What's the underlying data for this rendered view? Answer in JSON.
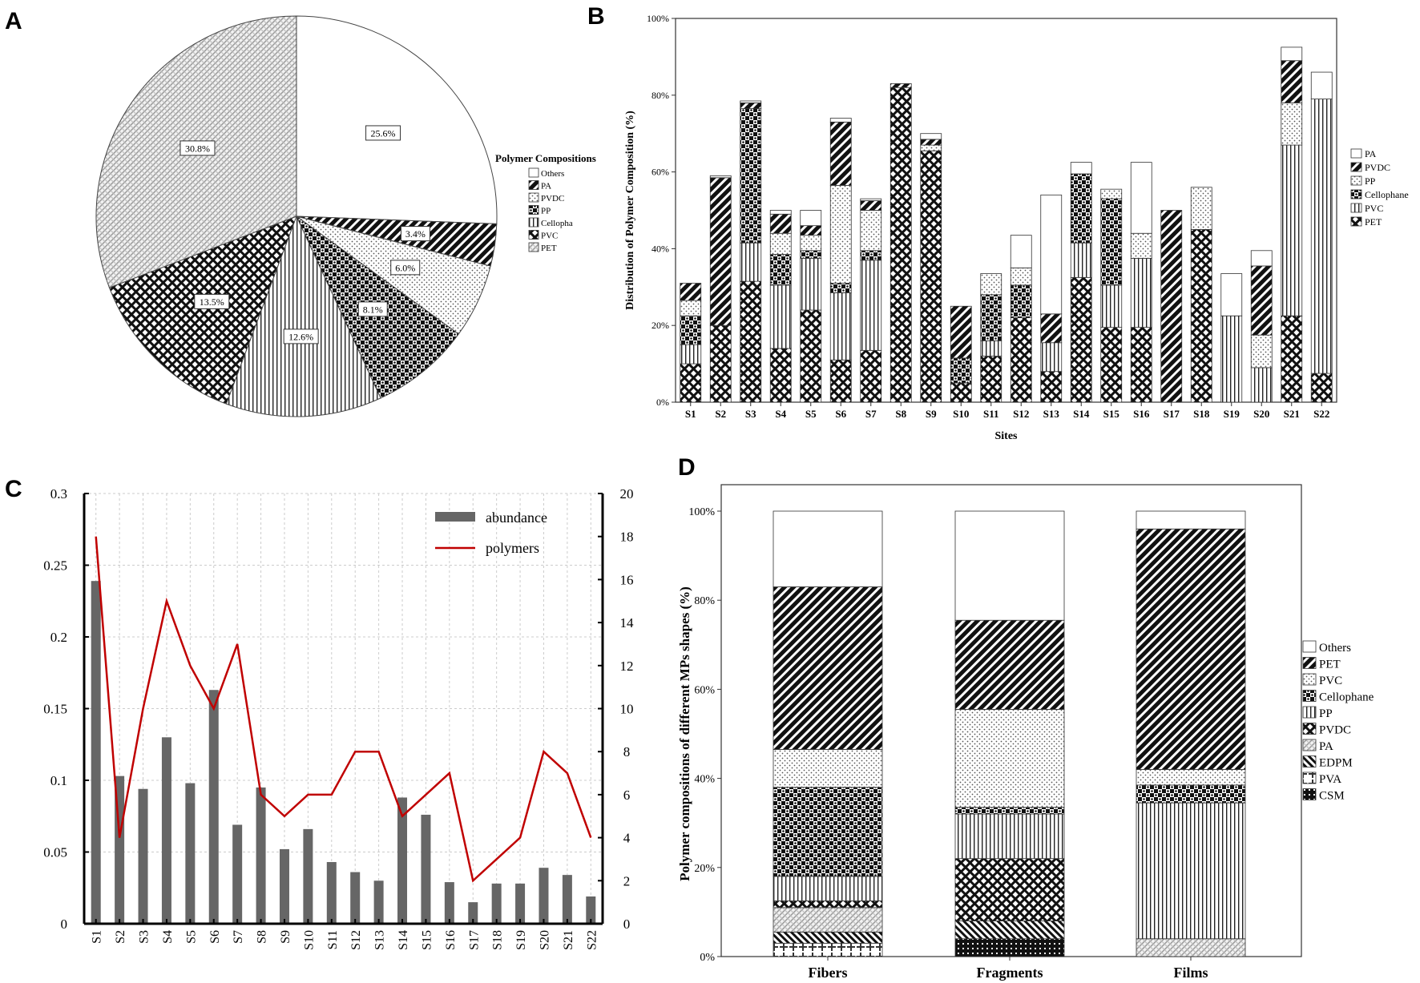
{
  "panels": [
    {
      "letter": "A"
    },
    {
      "letter": "B"
    },
    {
      "letter": "C"
    },
    {
      "letter": "D"
    }
  ],
  "chart_data": [
    {
      "panel": "A",
      "type": "pie",
      "legend_title": "Polymer Compositions",
      "legend": [
        "Others",
        "PA",
        "PVDC",
        "PP",
        "Cellopha",
        "PVC",
        "PET"
      ],
      "slices": [
        {
          "label": "25.6%",
          "value": 25.6,
          "pattern": "white",
          "color": "#ffffff"
        },
        {
          "label": "3.4%",
          "value": 3.4,
          "pattern": "diag-dark",
          "color": "#222222"
        },
        {
          "label": "6.0%",
          "value": 6.0,
          "pattern": "dots-light",
          "color": "#f2f2f2"
        },
        {
          "label": "8.1%",
          "value": 8.1,
          "pattern": "checker",
          "color": "#555555"
        },
        {
          "label": "12.6%",
          "value": 12.6,
          "pattern": "vlines",
          "color": "#bbbbbb"
        },
        {
          "label": "13.5%",
          "value": 13.5,
          "pattern": "crosshatch",
          "color": "#333333"
        },
        {
          "label": "30.8%",
          "value": 30.8,
          "pattern": "light-hatch",
          "color": "#dddddd"
        }
      ],
      "legend_placement": "right"
    },
    {
      "panel": "B",
      "type": "bar",
      "stacked": true,
      "xlabel": "Sites",
      "ylabel": "Distribution of Polymer Composition (%)",
      "yticks": [
        "0%",
        "20%",
        "40%",
        "60%",
        "80%",
        "100%"
      ],
      "ylim": [
        0,
        100
      ],
      "categories": [
        "S1",
        "S2",
        "S3",
        "S4",
        "S5",
        "S6",
        "S7",
        "S8",
        "S9",
        "S10",
        "S11",
        "S12",
        "S13",
        "S14",
        "S15",
        "S16",
        "S17",
        "S18",
        "S19",
        "S20",
        "S21",
        "S22"
      ],
      "legend": [
        "PA",
        "PVDC",
        "PP",
        "Cellophane",
        "PVC",
        "PET"
      ],
      "legend_placement": "right",
      "series": [
        {
          "name": "PET",
          "pattern": "crosshatch",
          "values": [
            10,
            20,
            31.5,
            14,
            24,
            11,
            13.5,
            82,
            65.5,
            5,
            12,
            22,
            8,
            32.5,
            19.5,
            19.5,
            0,
            45,
            0,
            0,
            22.5,
            7.5
          ]
        },
        {
          "name": "PVC",
          "pattern": "vlines",
          "values": [
            5,
            0,
            10,
            16.5,
            13.5,
            17.5,
            23.5,
            0,
            0,
            0,
            4,
            0,
            7.5,
            9,
            11,
            18,
            0,
            0,
            22.5,
            9,
            44.5,
            71.5
          ]
        },
        {
          "name": "Cellophane",
          "pattern": "checker",
          "values": [
            7.5,
            0,
            35,
            8,
            2,
            2.5,
            2.5,
            0,
            0,
            6.5,
            12,
            8.5,
            0,
            18,
            22.5,
            0,
            0,
            0,
            0,
            0,
            0,
            0
          ]
        },
        {
          "name": "PP",
          "pattern": "dots-light",
          "values": [
            4,
            0,
            0,
            5.5,
            4,
            25.5,
            10.5,
            0,
            1.5,
            0,
            5.5,
            4.5,
            0,
            0,
            2.5,
            6.5,
            0,
            11,
            0,
            8.5,
            11,
            0
          ]
        },
        {
          "name": "PVDC",
          "pattern": "diag-dark",
          "values": [
            4.5,
            38.5,
            1.5,
            5,
            2.5,
            16.5,
            2.5,
            1,
            1.5,
            13.5,
            0,
            0,
            7.5,
            0,
            0,
            0,
            50,
            0,
            0,
            18,
            11,
            0
          ]
        },
        {
          "name": "PA",
          "pattern": "white",
          "values": [
            0,
            0.5,
            0.5,
            1,
            4,
            1,
            0.5,
            0,
            1.5,
            0,
            0,
            8.5,
            31,
            3,
            0,
            18.5,
            0,
            0,
            11,
            4,
            3.5,
            7
          ]
        }
      ]
    },
    {
      "panel": "C",
      "type": "bar",
      "dual_axis": true,
      "categories": [
        "S1",
        "S2",
        "S3",
        "S4",
        "S5",
        "S6",
        "S7",
        "S8",
        "S9",
        "S10",
        "S11",
        "S12",
        "S13",
        "S14",
        "S15",
        "S16",
        "S17",
        "S18",
        "S19",
        "S20",
        "S21",
        "S22"
      ],
      "yticks_left": [
        "0",
        "0.05",
        "0.1",
        "0.15",
        "0.2",
        "0.25",
        "0.3"
      ],
      "ylim_left": [
        0,
        0.3
      ],
      "yticks_right": [
        "0",
        "2",
        "4",
        "6",
        "8",
        "10",
        "12",
        "14",
        "16",
        "18",
        "20"
      ],
      "ylim_right": [
        0,
        20
      ],
      "grid": true,
      "legend_placement": "top-right",
      "series": [
        {
          "name": "abundance",
          "kind": "bar",
          "axis": "left",
          "color": "#666666",
          "values": [
            0.239,
            0.103,
            0.094,
            0.13,
            0.098,
            0.163,
            0.069,
            0.095,
            0.052,
            0.066,
            0.043,
            0.036,
            0.03,
            0.088,
            0.076,
            0.029,
            0.015,
            0.028,
            0.028,
            0.039,
            0.034,
            0.019
          ]
        },
        {
          "name": "polymers",
          "kind": "line",
          "axis": "right",
          "color": "#c00000",
          "values": [
            18,
            4,
            10,
            15,
            12,
            10,
            13,
            6,
            5,
            6,
            6,
            8,
            8,
            5,
            6,
            7,
            2,
            3,
            4,
            8,
            7,
            4
          ]
        }
      ]
    },
    {
      "panel": "D",
      "type": "bar",
      "stacked": true,
      "ylabel": "Polymer compositions of different MPs shapes (%)",
      "yticks": [
        "0%",
        "20%",
        "40%",
        "60%",
        "80%",
        "100%"
      ],
      "ylim": [
        0,
        100
      ],
      "categories": [
        "Fibers",
        "Fragments",
        "Films"
      ],
      "legend": [
        "Others",
        "PET",
        "PVC",
        "Cellophane",
        "PP",
        "PVDC",
        "PA",
        "EDPM",
        "PVA",
        "CSM"
      ],
      "legend_placement": "right",
      "series": [
        {
          "name": "CSM",
          "pattern": "grid-dark",
          "values": [
            0,
            4,
            0
          ]
        },
        {
          "name": "PVA",
          "pattern": "plus",
          "values": [
            3,
            0,
            0
          ]
        },
        {
          "name": "EDPM",
          "pattern": "diag-rev",
          "values": [
            2.5,
            4,
            0
          ]
        },
        {
          "name": "PA",
          "pattern": "light-hatch",
          "values": [
            5.5,
            0,
            4
          ]
        },
        {
          "name": "PVDC",
          "pattern": "crosshatch",
          "values": [
            1.5,
            14,
            0
          ]
        },
        {
          "name": "PP",
          "pattern": "vlines",
          "values": [
            5.5,
            10,
            30.5
          ]
        },
        {
          "name": "Cellophane",
          "pattern": "checker",
          "values": [
            20,
            1.5,
            4
          ]
        },
        {
          "name": "PVC",
          "pattern": "dots-light",
          "values": [
            8.5,
            22,
            3.5
          ]
        },
        {
          "name": "PET",
          "pattern": "diag-dark",
          "values": [
            36.5,
            20,
            54
          ]
        },
        {
          "name": "Others",
          "pattern": "white",
          "values": [
            17,
            24.5,
            4
          ]
        }
      ]
    }
  ]
}
